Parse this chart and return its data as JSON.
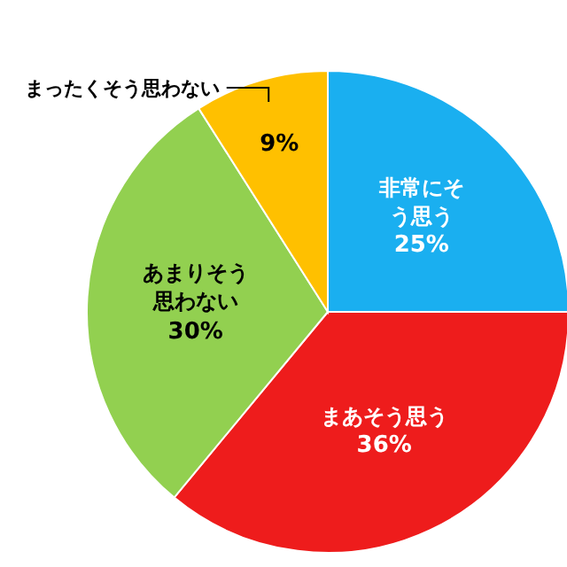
{
  "chart_data": {
    "type": "pie",
    "categories": [
      "非常にそう思う",
      "まあそう思う",
      "あまりそう思わない",
      "まったくそう思わない"
    ],
    "values": [
      25,
      36,
      30,
      9
    ],
    "colors": [
      "#1aaff0",
      "#ee1c1c",
      "#92d050",
      "#ffc000"
    ],
    "value_labels": [
      "25%",
      "36%",
      "30%",
      "9%"
    ]
  }
}
